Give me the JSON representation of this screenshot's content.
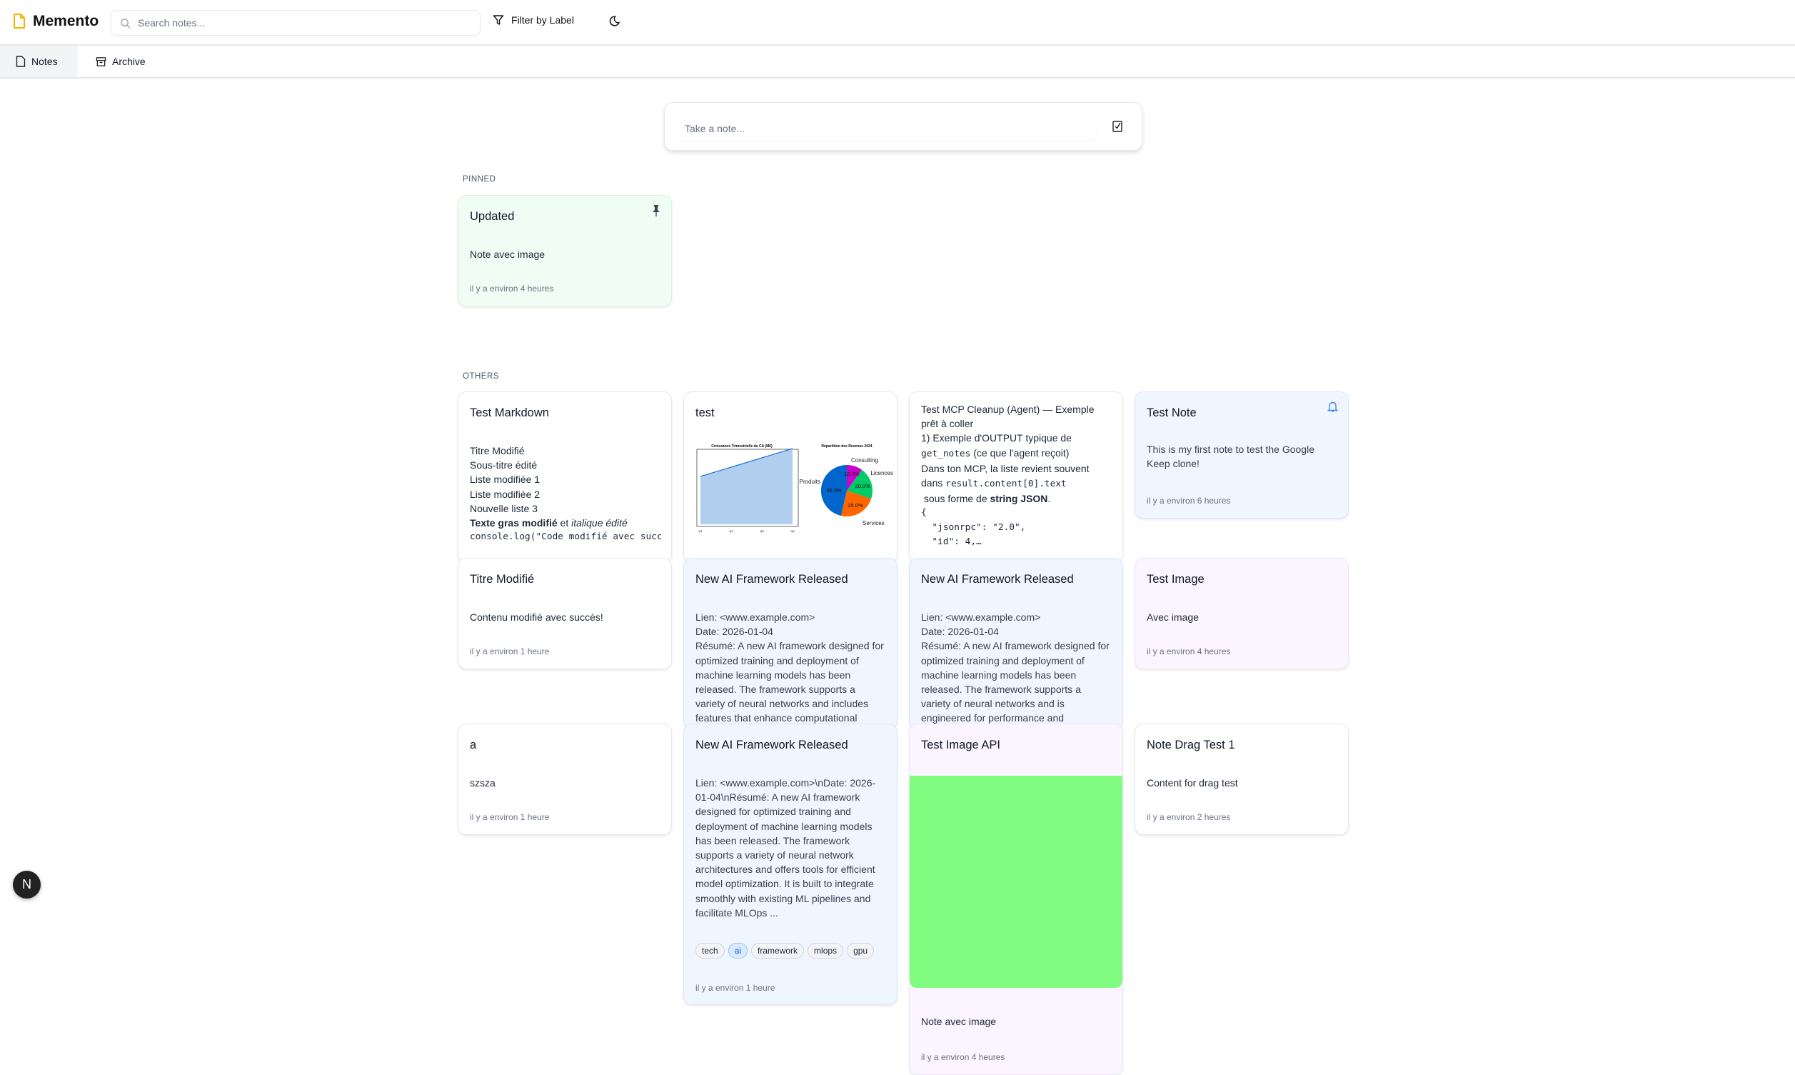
{
  "app": {
    "title": "Memento",
    "brand_color": "#f5b400"
  },
  "search": {
    "placeholder": "Search notes..."
  },
  "toolbar": {
    "filter_label": "Filter by Label",
    "theme_icon": "moon-icon"
  },
  "tabs": [
    {
      "label": "Notes",
      "active": true
    },
    {
      "label": "Archive",
      "active": false
    }
  ],
  "composer": {
    "placeholder": "Take a note..."
  },
  "sections": {
    "pinned": "PINNED",
    "others": "OTHERS"
  },
  "pinned": [
    {
      "title": "Updated",
      "body": "Note avec image",
      "time": "il y a environ 4 heures",
      "color": "#effdf4"
    }
  ],
  "notes": {
    "markdown": {
      "title": "Test Markdown",
      "lines": [
        "Titre Modifié",
        "Sous-titre édité",
        "Liste modifiée 1",
        "Liste modifiée 2",
        "Nouvelle liste 3"
      ],
      "bold": "Texte gras modifié",
      "et": " et ",
      "italic": "italique édité",
      "code": "console.log(\"Code modifié avec succ"
    },
    "test": {
      "title": "test",
      "chart1_title": "Croissance Trimestrielle du CA (M€)",
      "chart2_title": "Répartition des Revenus 2024",
      "quarters": [
        "Q1",
        "Q2",
        "Q3",
        "Q4"
      ],
      "pie_labels": [
        "Consulting",
        "Licences",
        "Services",
        "Produits"
      ],
      "pie_pct": [
        "10.0%",
        "20.0%",
        "25.0%",
        "45.0%"
      ]
    },
    "mcp": {
      "l1": "Test MCP Cleanup (Agent) — Exemple prêt à coller",
      "l2": "1) Exemple d'OUTPUT typique de",
      "code1": "get_notes",
      "l3": " (ce que l'agent reçoit)",
      "l4": "Dans ton MCP, la liste revient souvent dans ",
      "code2": "result.content[0].text",
      "l5": " sous forme de ",
      "bold": "string JSON",
      "dot": ".",
      "j1": "{",
      "j2": "  \"jsonrpc\": \"2.0\",",
      "j3": "  \"id\": 4,…"
    },
    "testnote": {
      "title": "Test Note",
      "body": "This is my first note to test the Google Keep clone!",
      "time": "il y a environ 6 heures"
    },
    "titre": {
      "title": "Titre Modifié",
      "body": "Contenu modifié avec succès!",
      "time": "il y a environ 1 heure"
    },
    "ai1": {
      "title": "New AI Framework Released",
      "body": "Lien: <www.example.com>\nDate: 2026-01-04\nRésumé: A new AI framework designed for optimized training and deployment of machine learning models has been released. The framework supports a variety of neural networks and includes features that enhance computational"
    },
    "ai2": {
      "title": "New AI Framework Released",
      "body": "Lien: <www.example.com>\nDate: 2026-01-04\nRésumé: A new AI framework designed for optimized training and deployment of machine learning models has been released. The framework supports a variety of neural networks and is engineered for performance and"
    },
    "testimage": {
      "title": "Test Image",
      "body": "Avec image",
      "time": "il y a environ 4 heures"
    },
    "a": {
      "title": "a",
      "body": "szsza",
      "time": "il y a environ 1 heure"
    },
    "ai3": {
      "title": "New AI Framework Released",
      "body": "Lien: <www.example.com>\\nDate: 2026-01-04\\nRésumé: A new AI framework designed for optimized training and deployment of machine learning models has been released. The framework supports a variety of neural network architectures and offers tools for efficient model optimization. It is built to integrate smoothly with existing ML pipelines and facilitate MLOps ...",
      "tags": [
        "tech",
        "ai",
        "framework",
        "mlops",
        "gpu"
      ],
      "time": "il y a environ 1 heure"
    },
    "imageapi": {
      "title": "Test Image API",
      "image_color": "#80fc80",
      "body": "Note avec image",
      "time": "il y a environ 4 heures"
    },
    "drag": {
      "title": "Note Drag Test 1",
      "body": "Content for drag test",
      "time": "il y a environ 2 heures"
    }
  },
  "dev": {
    "label": "N"
  }
}
